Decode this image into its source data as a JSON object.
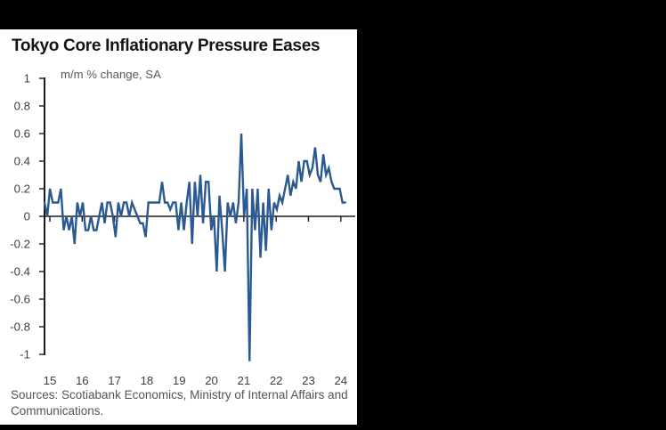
{
  "window": {
    "background_color": "#000000",
    "panel_background_color": "#ffffff"
  },
  "chart": {
    "title": "Tokyo Core Inflationary Pressure Eases",
    "subtitle": "m/m % change, SA",
    "source": "Sources: Scotiabank Economics, Ministry of Internal Affairs and Communications."
  },
  "chart_data": {
    "type": "line",
    "title": "Tokyo Core Inflationary Pressure Eases",
    "ylabel": "m/m % change, SA",
    "xlabel": "",
    "ylim": [
      -1,
      1
    ],
    "grid": false,
    "legend": "none",
    "line_color": "#2b5a92",
    "axis_color": "#1a1a1a",
    "tick_label_color": "#3f3f3f",
    "yticks": [
      1,
      0.8,
      0.6,
      0.4,
      0.2,
      0,
      -0.2,
      -0.4,
      -0.6,
      -0.8,
      -1
    ],
    "xticks": [
      "15",
      "16",
      "17",
      "18",
      "19",
      "20",
      "21",
      "22",
      "23",
      "24"
    ],
    "frequency": "monthly",
    "x_start": "2015-01",
    "x_end": "2024-03",
    "values": [
      0.1,
      0.0,
      0.2,
      0.1,
      0.1,
      0.1,
      0.2,
      -0.1,
      0.0,
      -0.1,
      0.0,
      -0.2,
      0.1,
      0.0,
      0.1,
      -0.1,
      -0.1,
      0.0,
      -0.1,
      -0.1,
      0.0,
      0.1,
      -0.05,
      0.1,
      0.1,
      0.0,
      -0.15,
      0.1,
      0.0,
      0.1,
      0.1,
      0.0,
      0.1,
      0.05,
      0.0,
      -0.05,
      -0.05,
      -0.15,
      0.1,
      0.1,
      0.1,
      0.1,
      0.1,
      0.25,
      0.1,
      0.1,
      0.05,
      0.1,
      0.1,
      -0.1,
      0.1,
      -0.1,
      0.1,
      0.25,
      -0.2,
      0.25,
      0.0,
      0.3,
      -0.05,
      0.25,
      0.25,
      -0.1,
      0.0,
      -0.4,
      0.15,
      -0.1,
      -0.4,
      0.1,
      0.0,
      0.1,
      -0.05,
      0.1,
      0.6,
      0.0,
      0.2,
      -1.05,
      0.2,
      -0.1,
      0.2,
      -0.3,
      0.1,
      -0.25,
      0.2,
      -0.1,
      0.1,
      0.05,
      0.15,
      0.1,
      0.2,
      0.3,
      0.15,
      0.25,
      0.2,
      0.4,
      0.25,
      0.4,
      0.4,
      0.3,
      0.35,
      0.5,
      0.3,
      0.25,
      0.45,
      0.3,
      0.35,
      0.25,
      0.2,
      0.2,
      0.2,
      0.1,
      0.1
    ]
  }
}
